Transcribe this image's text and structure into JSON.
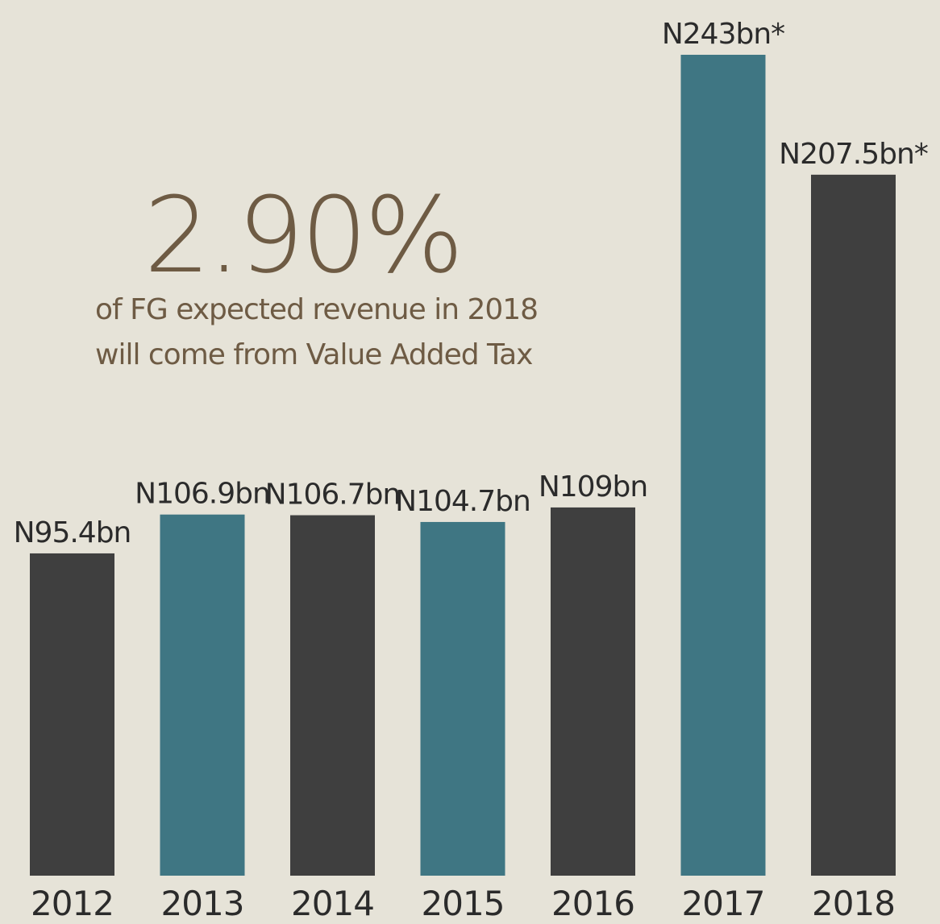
{
  "chart_data": {
    "type": "bar",
    "annotation": "2.90%",
    "annotation_text": [
      "of FG expected revenue in 2018",
      "will come from Value Added Tax"
    ],
    "categories": [
      "2012",
      "2013",
      "2014",
      "2015",
      "2016",
      "2017",
      "2018"
    ],
    "values": [
      95.4,
      106.9,
      106.7,
      104.7,
      109,
      243,
      207.5
    ],
    "value_labels": [
      "N95.4bn",
      "N106.9bn",
      "N106.7bn",
      "N104.7bn",
      "N109bn",
      "N243bn*",
      "N207.5bn*"
    ],
    "colors": [
      "#3f3f3f",
      "#3f7683",
      "#3f3f3f",
      "#3f7683",
      "#3f3f3f",
      "#3f7683",
      "#3f3f3f"
    ]
  }
}
